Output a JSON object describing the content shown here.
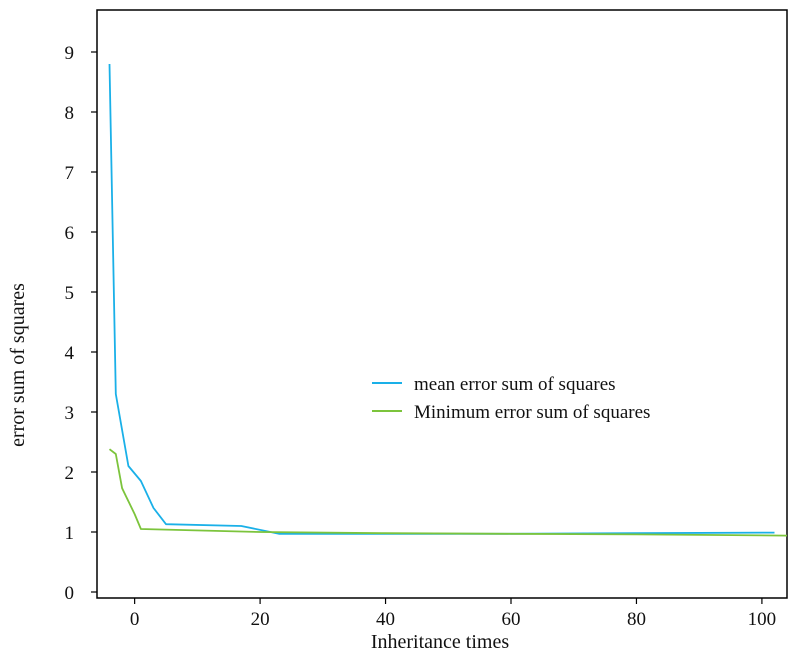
{
  "chart_data": {
    "type": "line",
    "title": "",
    "xlabel": "Inheritance times",
    "ylabel": "error sum of squares",
    "xlim": [
      -6,
      104
    ],
    "ylim": [
      -0.1,
      9.7
    ],
    "xticks": [
      0,
      20,
      40,
      60,
      80,
      100
    ],
    "yticks": [
      0,
      1,
      2,
      3,
      4,
      5,
      6,
      7,
      8,
      9
    ],
    "grid": false,
    "legend": "center-right",
    "series": [
      {
        "name": "mean error sum of squares",
        "color": "#1ab0e8",
        "x": [
          -4,
          -3,
          -1,
          1,
          3,
          5,
          17,
          23,
          40,
          60,
          80,
          102
        ],
        "y": [
          8.8,
          3.3,
          2.1,
          1.85,
          1.4,
          1.13,
          1.1,
          0.97,
          0.97,
          0.97,
          0.98,
          0.99
        ]
      },
      {
        "name": "Minimum error sum of squares",
        "color": "#7cc43c",
        "x": [
          -4,
          -3,
          -2,
          0,
          1,
          20,
          40,
          60,
          80,
          104
        ],
        "y": [
          2.38,
          2.3,
          1.73,
          1.3,
          1.05,
          1.0,
          0.98,
          0.97,
          0.96,
          0.94
        ]
      }
    ]
  }
}
